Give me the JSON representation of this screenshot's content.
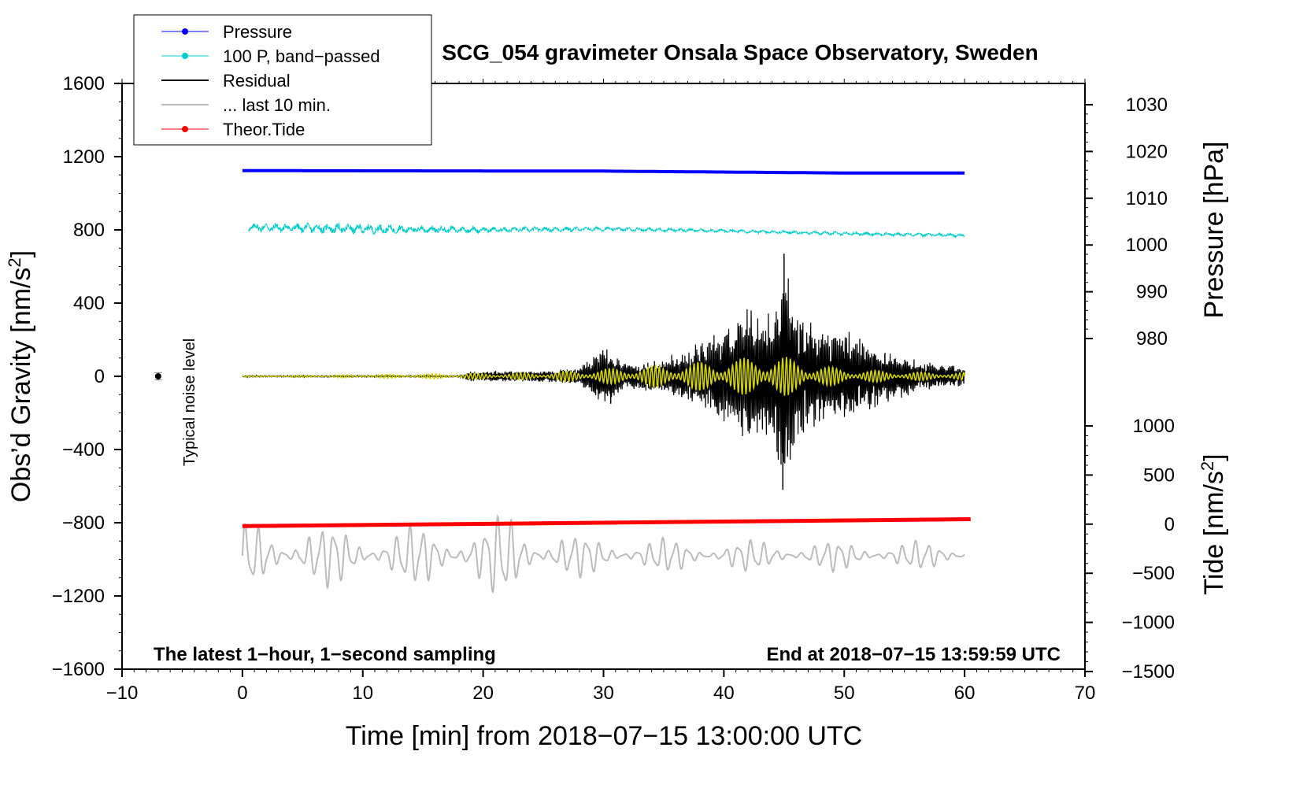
{
  "chart_data": {
    "type": "line",
    "title": "SCG_054 gravimeter Onsala Space Observatory, Sweden",
    "xlabel": "Time [min] from 2018−07−15 13:00:00 UTC",
    "ylabel_left": "Obs’d Gravity [nm/s",
    "ylabel_left_sup": "2",
    "ylabel_left_close": "]",
    "ylabel_right_pressure": "Pressure [hPa]",
    "ylabel_right_tide": "Tide [nm/s",
    "ylabel_right_tide_sup": "2",
    "ylabel_right_tide_close": "]",
    "xlim": [
      -10,
      70
    ],
    "ylim_left": [
      -1600,
      1600
    ],
    "x_ticks": [
      "−10",
      "0",
      "10",
      "20",
      "30",
      "40",
      "50",
      "60",
      "70"
    ],
    "x_tick_values": [
      -10,
      0,
      10,
      20,
      30,
      40,
      50,
      60,
      70
    ],
    "y_left_ticks": [
      "1600",
      "1200",
      "800",
      "400",
      "0",
      "−400",
      "−800",
      "−1200",
      "−1600"
    ],
    "y_left_tick_values": [
      1600,
      1200,
      800,
      400,
      0,
      -400,
      -800,
      -1200,
      -1600
    ],
    "pressure_axis": {
      "range": [
        965,
        1031
      ],
      "ticks": [
        1030,
        1020,
        1010,
        1000,
        990,
        980
      ],
      "tick_labels": [
        "1030",
        "1020",
        "1010",
        "1000",
        "990",
        "980"
      ]
    },
    "tide_axis": {
      "range": [
        -1500,
        1500
      ],
      "ticks": [
        1000,
        500,
        0,
        -500,
        -1000,
        -1500
      ],
      "tick_labels": [
        "1000",
        "500",
        "0",
        "−500",
        "−1000",
        "−1500"
      ]
    },
    "left_note": "The latest 1−hour, 1−second sampling",
    "right_note": "End at 2018−07−15 13:59:59 UTC",
    "noise_label": "Typical noise level",
    "noise_marker": {
      "x": -7,
      "y": 0,
      "err": 20
    },
    "legend": [
      {
        "label": "Pressure",
        "color": "#0000ff",
        "marker": true
      },
      {
        "label": "100 P, band−passed",
        "color": "#00cccc",
        "marker": true
      },
      {
        "label": "Residual",
        "color": "#000000",
        "marker": false
      },
      {
        "label": "... last 10 min.",
        "color": "#bbbbbb",
        "marker": false
      },
      {
        "label": "Theor.Tide",
        "color": "#ff0000",
        "marker": true
      }
    ],
    "series": [
      {
        "name": "Pressure",
        "color": "#0000ff",
        "units": "hPa",
        "x": [
          0,
          30,
          40,
          50,
          60
        ],
        "values": [
          1015.9,
          1015.8,
          1015.6,
          1015.4,
          1015.4
        ]
      },
      {
        "name": "100 P, band−passed",
        "color": "#00cccc",
        "units": "nm/s2",
        "x": [
          0,
          10,
          20,
          30,
          40,
          50,
          60
        ],
        "values": [
          815,
          805,
          800,
          805,
          795,
          780,
          770
        ],
        "amplitude": [
          30,
          35,
          20,
          15,
          12,
          12,
          12
        ]
      },
      {
        "name": "Residual",
        "color": "#000000",
        "units": "nm/s2",
        "x": [
          0,
          18,
          19,
          25,
          28,
          30,
          32,
          35,
          38,
          40,
          42,
          44,
          45,
          46,
          48,
          50,
          52,
          55,
          58,
          60
        ],
        "amplitude": [
          4,
          4,
          25,
          30,
          45,
          150,
          60,
          90,
          180,
          250,
          360,
          300,
          650,
          330,
          250,
          250,
          180,
          100,
          60,
          50
        ],
        "spikes": [
          {
            "x": 30.6,
            "value": -150
          },
          {
            "x": 45.0,
            "value": 670
          },
          {
            "x": 44.9,
            "value": -620
          }
        ]
      },
      {
        "name": "Residual (yellow overlay)",
        "color": "#d6d600",
        "units": "nm/s2",
        "x": [
          0,
          25,
          30,
          35,
          40,
          43,
          45,
          47,
          50,
          55,
          60
        ],
        "amplitude": [
          3,
          20,
          40,
          60,
          90,
          110,
          110,
          70,
          40,
          25,
          20
        ]
      },
      {
        "name": "... last 10 min.",
        "color": "#bbbbbb",
        "units": "nm/s2",
        "baseline": -980,
        "x": [
          0,
          5,
          10,
          15,
          20,
          22,
          25,
          28,
          30,
          40,
          50,
          60
        ],
        "amplitude": [
          140,
          140,
          120,
          130,
          150,
          190,
          130,
          90,
          80,
          70,
          65,
          60
        ]
      },
      {
        "name": "Theor.Tide",
        "color": "#ff0000",
        "units": "nm/s2",
        "x": [
          0,
          60.5
        ],
        "values": [
          -20,
          50
        ]
      }
    ]
  }
}
